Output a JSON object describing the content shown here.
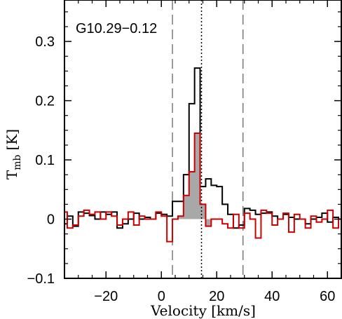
{
  "chart_data": {
    "type": "line",
    "annotation": "G10.29−0.12",
    "xlabel": "Velocity [km/s]",
    "ylabel_main": "T",
    "ylabel_sub": "mb",
    "ylabel_unit": "[K]",
    "xlim": [
      -35,
      65
    ],
    "ylim": [
      -0.1,
      0.37
    ],
    "x_ticks": [
      -20,
      0,
      20,
      40,
      60
    ],
    "x_tick_labels": [
      "−20",
      "0",
      "20",
      "40",
      "60"
    ],
    "y_ticks": [
      -0.1,
      0,
      0.1,
      0.2,
      0.3
    ],
    "y_tick_labels": [
      "−0.1",
      "0",
      "0.1",
      "0.2",
      "0.3"
    ],
    "vlines": [
      {
        "x": 4,
        "style": "dashed"
      },
      {
        "x": 14.5,
        "style": "dotted"
      },
      {
        "x": 29.5,
        "style": "dashed"
      }
    ],
    "series": [
      {
        "color": "#000000",
        "x": [
          -35,
          -33,
          -31,
          -29,
          -27,
          -25,
          -23,
          -21,
          -19,
          -17,
          -15,
          -13,
          -11,
          -9,
          -7,
          -5,
          -3,
          -1,
          1,
          3,
          5,
          7,
          9,
          11,
          13,
          15,
          17,
          19,
          21,
          23,
          25,
          27,
          29,
          31,
          33,
          35,
          37,
          39,
          41,
          43,
          45,
          47,
          49,
          51,
          53,
          55,
          57,
          59,
          61,
          63,
          65
        ],
        "y": [
          -0.008,
          0.005,
          -0.012,
          0.012,
          0.01,
          0.006,
          0.0,
          0.012,
          0.008,
          0.012,
          -0.015,
          -0.008,
          0.0,
          0.01,
          0.0,
          0.003,
          0.0,
          0.01,
          0.008,
          0.005,
          0.03,
          0.03,
          0.075,
          0.195,
          0.255,
          0.055,
          0.068,
          0.057,
          0.055,
          0.025,
          0.008,
          -0.015,
          -0.01,
          0.018,
          0.015,
          0.008,
          0.01,
          0.012,
          0.005,
          0.0,
          0.008,
          0.003,
          0.0,
          0.0,
          -0.008,
          0.0,
          0.003,
          0.01,
          -0.005,
          0.003,
          0.0
        ]
      },
      {
        "color": "#cc0000",
        "fill": "#a8a8a8",
        "fill_range": [
          4,
          18.5
        ],
        "x": [
          -35,
          -33,
          -31,
          -29,
          -27,
          -25,
          -23,
          -21,
          -19,
          -17,
          -15,
          -13,
          -11,
          -9,
          -7,
          -5,
          -3,
          -1,
          1,
          3,
          5,
          7,
          9,
          11,
          13,
          15,
          17,
          19,
          21,
          23,
          25,
          27,
          29,
          31,
          33,
          35,
          37,
          39,
          41,
          43,
          45,
          47,
          49,
          51,
          53,
          55,
          57,
          59,
          61,
          63,
          65
        ],
        "y": [
          0.012,
          -0.015,
          -0.01,
          0.005,
          0.015,
          0.008,
          0.012,
          0.0,
          0.012,
          0.005,
          -0.01,
          0.0,
          0.012,
          -0.01,
          0.005,
          0.0,
          0.0,
          0.012,
          0.005,
          -0.038,
          0.0,
          0.005,
          0.04,
          0.08,
          0.145,
          0.025,
          -0.012,
          0.0,
          0.0,
          -0.008,
          -0.015,
          0.008,
          -0.015,
          0.01,
          0.0,
          -0.032,
          0.015,
          0.01,
          -0.01,
          0.0,
          0.01,
          -0.022,
          0.008,
          0.0,
          -0.015,
          0.005,
          -0.005,
          0.0,
          0.015,
          -0.015,
          0.0
        ]
      }
    ]
  }
}
